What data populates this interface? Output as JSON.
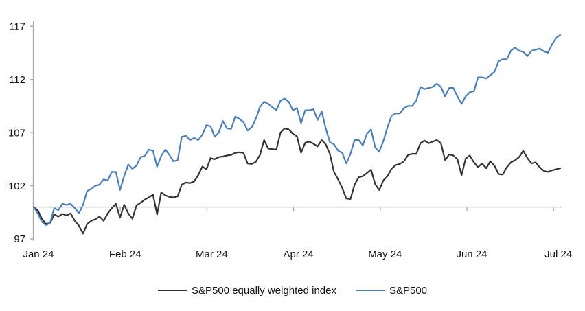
{
  "chart_data": {
    "type": "line",
    "title": "",
    "x_tick_labels": [
      "Jan 24",
      "Feb 24",
      "Mar 24",
      "Apr 24",
      "May 24",
      "Jun 24",
      "Jul 24"
    ],
    "y_ticks": [
      97,
      102,
      107,
      112,
      117
    ],
    "ylim": [
      97,
      117
    ],
    "baseline_value": 100,
    "grid": false,
    "legend_position": "bottom",
    "x": [
      "Dec 29",
      "Jan 2",
      "Jan 3",
      "Jan 4",
      "Jan 5",
      "Jan 8",
      "Jan 9",
      "Jan 10",
      "Jan 11",
      "Jan 12",
      "Jan 16",
      "Jan 17",
      "Jan 18",
      "Jan 19",
      "Jan 22",
      "Jan 23",
      "Jan 24",
      "Jan 25",
      "Jan 26",
      "Jan 29",
      "Jan 30",
      "Jan 31",
      "Feb 1",
      "Feb 2",
      "Feb 5",
      "Feb 6",
      "Feb 7",
      "Feb 8",
      "Feb 9",
      "Feb 12",
      "Feb 13",
      "Feb 14",
      "Feb 15",
      "Feb 16",
      "Feb 20",
      "Feb 21",
      "Feb 22",
      "Feb 23",
      "Feb 26",
      "Feb 27",
      "Feb 28",
      "Feb 29",
      "Mar 1",
      "Mar 4",
      "Mar 5",
      "Mar 6",
      "Mar 7",
      "Mar 8",
      "Mar 11",
      "Mar 12",
      "Mar 13",
      "Mar 14",
      "Mar 15",
      "Mar 18",
      "Mar 19",
      "Mar 20",
      "Mar 21",
      "Mar 22",
      "Mar 25",
      "Mar 26",
      "Mar 27",
      "Mar 28",
      "Apr 1",
      "Apr 2",
      "Apr 3",
      "Apr 4",
      "Apr 5",
      "Apr 8",
      "Apr 9",
      "Apr 10",
      "Apr 11",
      "Apr 12",
      "Apr 15",
      "Apr 16",
      "Apr 17",
      "Apr 18",
      "Apr 19",
      "Apr 22",
      "Apr 23",
      "Apr 24",
      "Apr 25",
      "Apr 26",
      "Apr 29",
      "Apr 30",
      "May 1",
      "May 2",
      "May 3",
      "May 6",
      "May 7",
      "May 8",
      "May 9",
      "May 10",
      "May 13",
      "May 14",
      "May 15",
      "May 16",
      "May 17",
      "May 20",
      "May 21",
      "May 22",
      "May 23",
      "May 24",
      "May 28",
      "May 29",
      "May 30",
      "May 31",
      "Jun 3",
      "Jun 4",
      "Jun 5",
      "Jun 6",
      "Jun 7",
      "Jun 10",
      "Jun 11",
      "Jun 12",
      "Jun 13",
      "Jun 14",
      "Jun 17",
      "Jun 18",
      "Jun 20",
      "Jun 21",
      "Jun 24",
      "Jun 25",
      "Jun 26",
      "Jun 27",
      "Jun 28",
      "Jul 1",
      "Jul 2",
      "Jul 3",
      "Jul 5"
    ],
    "series": [
      {
        "name": "S&P500 equally weighted index",
        "color": "#333333",
        "values": [
          100,
          99.7,
          98.9,
          98.4,
          98.5,
          99.3,
          99.1,
          99.35,
          99.2,
          99.4,
          98.7,
          98.25,
          97.5,
          98.4,
          98.7,
          98.85,
          99.1,
          98.7,
          99.4,
          99.9,
          100.3,
          99.0,
          100.2,
          99.4,
          98.9,
          100.15,
          100.4,
          100.7,
          100.9,
          101.15,
          99.3,
          101.35,
          101.1,
          100.95,
          100.9,
          101.0,
          102.1,
          102.3,
          102.25,
          102.4,
          103.0,
          103.8,
          103.55,
          104.6,
          104.5,
          104.7,
          104.75,
          104.85,
          104.9,
          105.1,
          105.15,
          105.1,
          104.1,
          104.05,
          104.25,
          104.9,
          106.3,
          105.5,
          105.45,
          105.4,
          107.0,
          107.4,
          107.3,
          106.9,
          106.65,
          105.1,
          106.05,
          106.15,
          105.95,
          105.7,
          106.3,
          105.9,
          105.0,
          103.3,
          102.6,
          101.8,
          100.8,
          100.75,
          102.1,
          102.8,
          102.9,
          103.2,
          103.5,
          102.15,
          101.6,
          102.5,
          102.9,
          103.6,
          103.95,
          104.05,
          104.3,
          104.9,
          105.0,
          105.0,
          106.0,
          106.25,
          106.0,
          106.15,
          106.3,
          106.0,
          104.4,
          104.95,
          104.85,
          104.5,
          103.0,
          104.55,
          104.85,
          104.2,
          103.75,
          104.1,
          103.65,
          104.3,
          103.9,
          103.1,
          103.05,
          103.75,
          104.2,
          104.4,
          104.7,
          105.3,
          104.6,
          104.1,
          104.2,
          103.75,
          103.4,
          103.3,
          103.45,
          103.55,
          103.65
        ]
      },
      {
        "name": "S&P500",
        "color": "#4a7ebb",
        "values": [
          100,
          99.4,
          98.6,
          98.3,
          98.5,
          99.9,
          99.7,
          100.3,
          100.2,
          100.3,
          99.9,
          99.4,
          100.2,
          101.5,
          101.7,
          102.0,
          102.1,
          102.6,
          102.5,
          103.3,
          103.3,
          101.6,
          102.9,
          104.0,
          103.6,
          103.9,
          104.7,
          104.8,
          105.4,
          105.3,
          103.8,
          104.8,
          105.4,
          104.9,
          104.3,
          104.4,
          106.6,
          106.7,
          106.3,
          106.5,
          106.3,
          106.8,
          107.7,
          107.6,
          106.6,
          107.0,
          108.1,
          107.4,
          107.35,
          108.5,
          108.3,
          108.0,
          107.2,
          107.5,
          108.3,
          109.4,
          109.9,
          109.7,
          109.4,
          109.1,
          110.0,
          110.2,
          109.9,
          109.1,
          109.3,
          107.9,
          109.1,
          109.1,
          109.2,
          108.2,
          109.0,
          107.4,
          106.1,
          105.9,
          105.3,
          105.1,
          104.1,
          105.0,
          106.3,
          106.3,
          105.8,
          106.9,
          107.3,
          105.6,
          105.2,
          106.2,
          107.5,
          108.6,
          108.8,
          108.8,
          109.3,
          109.5,
          109.5,
          110.0,
          111.3,
          111.1,
          111.2,
          111.3,
          111.6,
          111.3,
          110.4,
          111.2,
          111.2,
          110.4,
          109.7,
          110.4,
          110.8,
          110.9,
          112.2,
          112.2,
          112.1,
          112.4,
          112.7,
          113.7,
          113.9,
          113.9,
          114.7,
          115.0,
          114.7,
          114.6,
          114.2,
          114.7,
          114.8,
          114.9,
          114.65,
          114.5,
          115.3,
          115.9,
          116.2
        ]
      }
    ]
  },
  "colors": {
    "axis": "#a6a6a6",
    "baseline": "#a6a6a6",
    "tick_label": "#111111",
    "background": "#ffffff"
  }
}
